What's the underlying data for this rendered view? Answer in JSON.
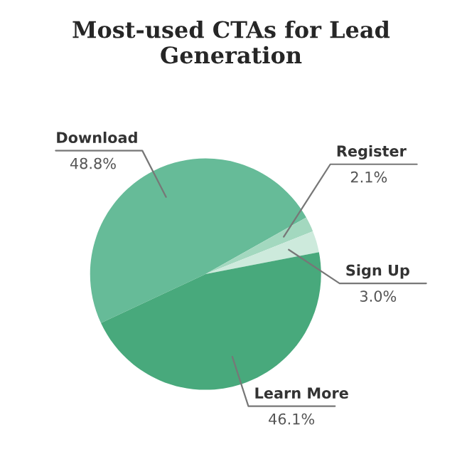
{
  "chart_data": {
    "type": "pie",
    "title": "Most-used CTAs for Lead Generation",
    "categories": [
      "Download",
      "Register",
      "Sign Up",
      "Learn More"
    ],
    "values": [
      48.8,
      2.1,
      3.0,
      46.1
    ],
    "value_labels": [
      "48.8%",
      "2.1%",
      "3.0%",
      "46.1%"
    ],
    "colors": [
      "#66bb98",
      "#a3d8bf",
      "#cdeadc",
      "#48a97c"
    ]
  }
}
